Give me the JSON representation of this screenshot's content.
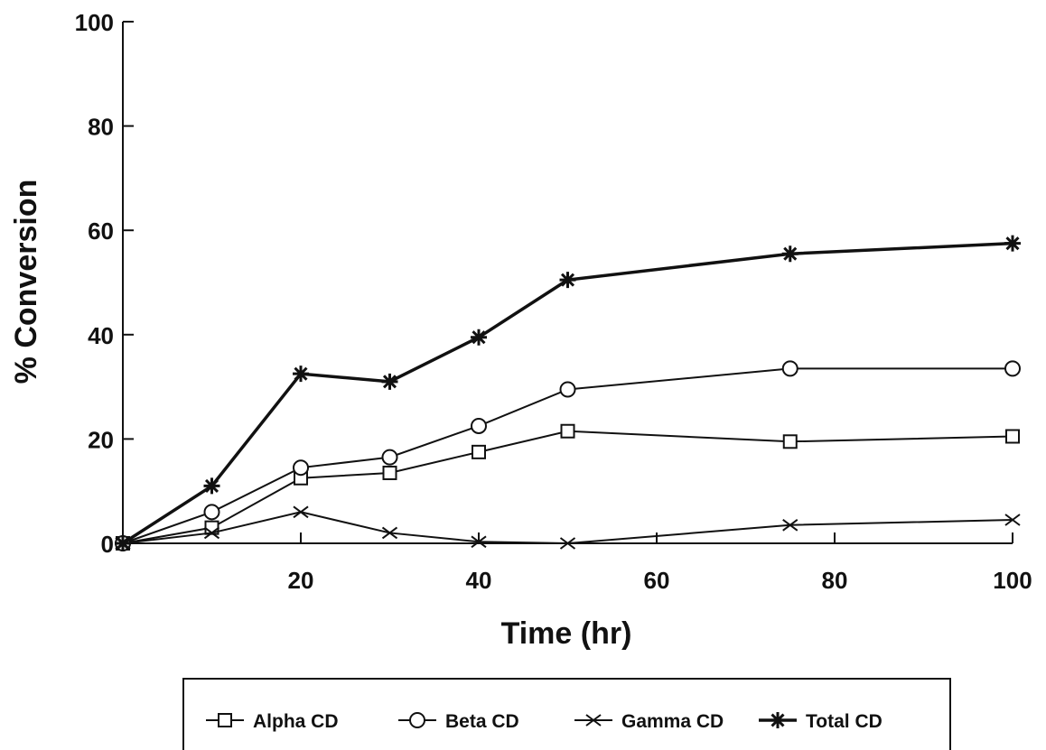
{
  "chart_data": {
    "type": "line",
    "xlabel": "Time (hr)",
    "ylabel": "% Conversion",
    "xlim": [
      0,
      100
    ],
    "ylim": [
      0,
      100
    ],
    "x_ticks": [
      20,
      40,
      60,
      80,
      100
    ],
    "y_ticks": [
      0,
      20,
      40,
      60,
      80,
      100
    ],
    "grid": false,
    "legend_position": "bottom",
    "series": [
      {
        "name": "Alpha CD",
        "marker": "square",
        "x": [
          0,
          10,
          20,
          30,
          40,
          50,
          75,
          100
        ],
        "y": [
          0,
          3,
          12.5,
          13.5,
          17.5,
          21.5,
          19.5,
          20.5
        ]
      },
      {
        "name": "Beta CD",
        "marker": "circle",
        "x": [
          0,
          10,
          20,
          30,
          40,
          50,
          75,
          100
        ],
        "y": [
          0,
          6,
          14.5,
          16.5,
          22.5,
          29.5,
          33.5,
          33.5
        ]
      },
      {
        "name": "Gamma CD",
        "marker": "x",
        "x": [
          0,
          10,
          20,
          30,
          40,
          50,
          75,
          100
        ],
        "y": [
          0,
          2,
          6,
          2,
          0.3,
          0,
          3.5,
          4.5
        ]
      },
      {
        "name": "Total CD",
        "marker": "asterisk",
        "x": [
          0,
          10,
          20,
          30,
          40,
          50,
          75,
          100
        ],
        "y": [
          0,
          11,
          32.5,
          31,
          39.5,
          50.5,
          55.5,
          57.5
        ]
      }
    ]
  }
}
